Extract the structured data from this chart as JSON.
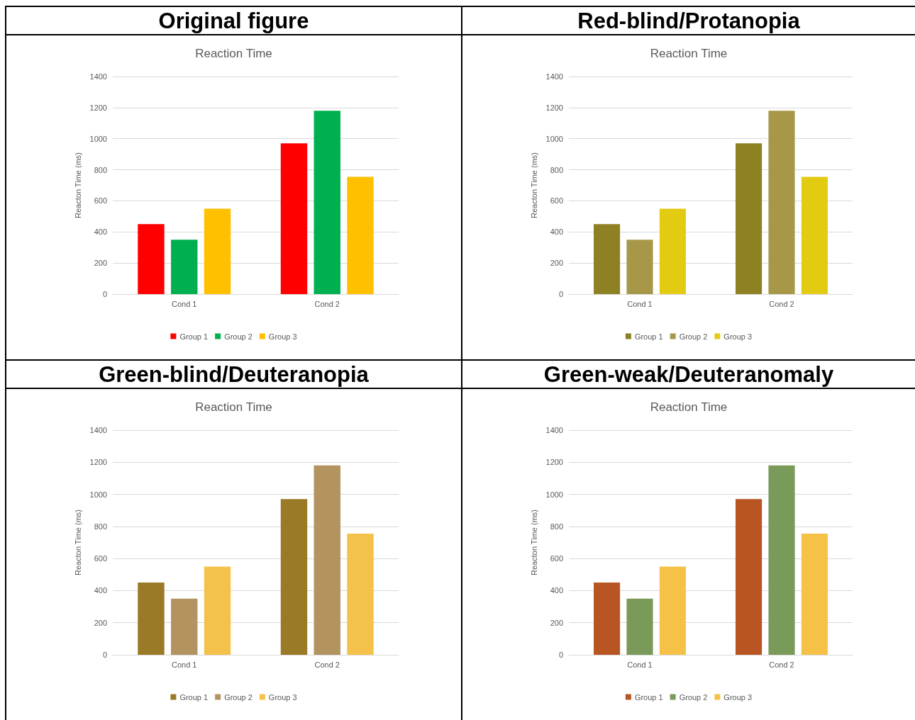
{
  "chart_data": [
    {
      "type": "bar",
      "title": "Original figure",
      "subtitle": "Reaction Time",
      "ylabel": "Reacton Time (ms)",
      "categories": [
        "Cond 1",
        "Cond 2"
      ],
      "series": [
        {
          "name": "Group 1",
          "color": "#ff0000",
          "values": [
            450,
            970
          ]
        },
        {
          "name": "Group 2",
          "color": "#00b050",
          "values": [
            350,
            1180
          ]
        },
        {
          "name": "Group 3",
          "color": "#ffc000",
          "values": [
            550,
            755
          ]
        }
      ],
      "ylim": [
        0,
        1400
      ],
      "yticks": [
        0,
        200,
        400,
        600,
        800,
        1000,
        1200,
        1400
      ],
      "grid": "y",
      "legend": "bottom"
    },
    {
      "type": "bar",
      "title": "Red-blind/Protanopia",
      "subtitle": "Reaction Time",
      "ylabel": "Reacton Time (ms)",
      "categories": [
        "Cond 1",
        "Cond 2"
      ],
      "series": [
        {
          "name": "Group 1",
          "color": "#8e8124",
          "values": [
            450,
            970
          ]
        },
        {
          "name": "Group 2",
          "color": "#a79849",
          "values": [
            350,
            1180
          ]
        },
        {
          "name": "Group 3",
          "color": "#e3cb12",
          "values": [
            550,
            755
          ]
        }
      ],
      "ylim": [
        0,
        1400
      ],
      "yticks": [
        0,
        200,
        400,
        600,
        800,
        1000,
        1200,
        1400
      ],
      "grid": "y",
      "legend": "bottom"
    },
    {
      "type": "bar",
      "title": "Green-blind/Deuteranopia",
      "subtitle": "Reaction Time",
      "ylabel": "Reacton Time (ms)",
      "categories": [
        "Cond 1",
        "Cond 2"
      ],
      "series": [
        {
          "name": "Group 1",
          "color": "#9a7a27",
          "values": [
            450,
            970
          ]
        },
        {
          "name": "Group 2",
          "color": "#b39460",
          "values": [
            350,
            1180
          ]
        },
        {
          "name": "Group 3",
          "color": "#f4c24a",
          "values": [
            550,
            755
          ]
        }
      ],
      "ylim": [
        0,
        1400
      ],
      "yticks": [
        0,
        200,
        400,
        600,
        800,
        1000,
        1200,
        1400
      ],
      "grid": "y",
      "legend": "bottom"
    },
    {
      "type": "bar",
      "title": "Green-weak/Deuteranomaly",
      "subtitle": "Reaction Time",
      "ylabel": "Reacton Time (ms)",
      "categories": [
        "Cond 1",
        "Cond 2"
      ],
      "series": [
        {
          "name": "Group 1",
          "color": "#b95523",
          "values": [
            450,
            970
          ]
        },
        {
          "name": "Group 2",
          "color": "#7a9a5a",
          "values": [
            350,
            1180
          ]
        },
        {
          "name": "Group 3",
          "color": "#f5c247",
          "values": [
            550,
            755
          ]
        }
      ],
      "ylim": [
        0,
        1400
      ],
      "yticks": [
        0,
        200,
        400,
        600,
        800,
        1000,
        1200,
        1400
      ],
      "grid": "y",
      "legend": "bottom"
    }
  ]
}
